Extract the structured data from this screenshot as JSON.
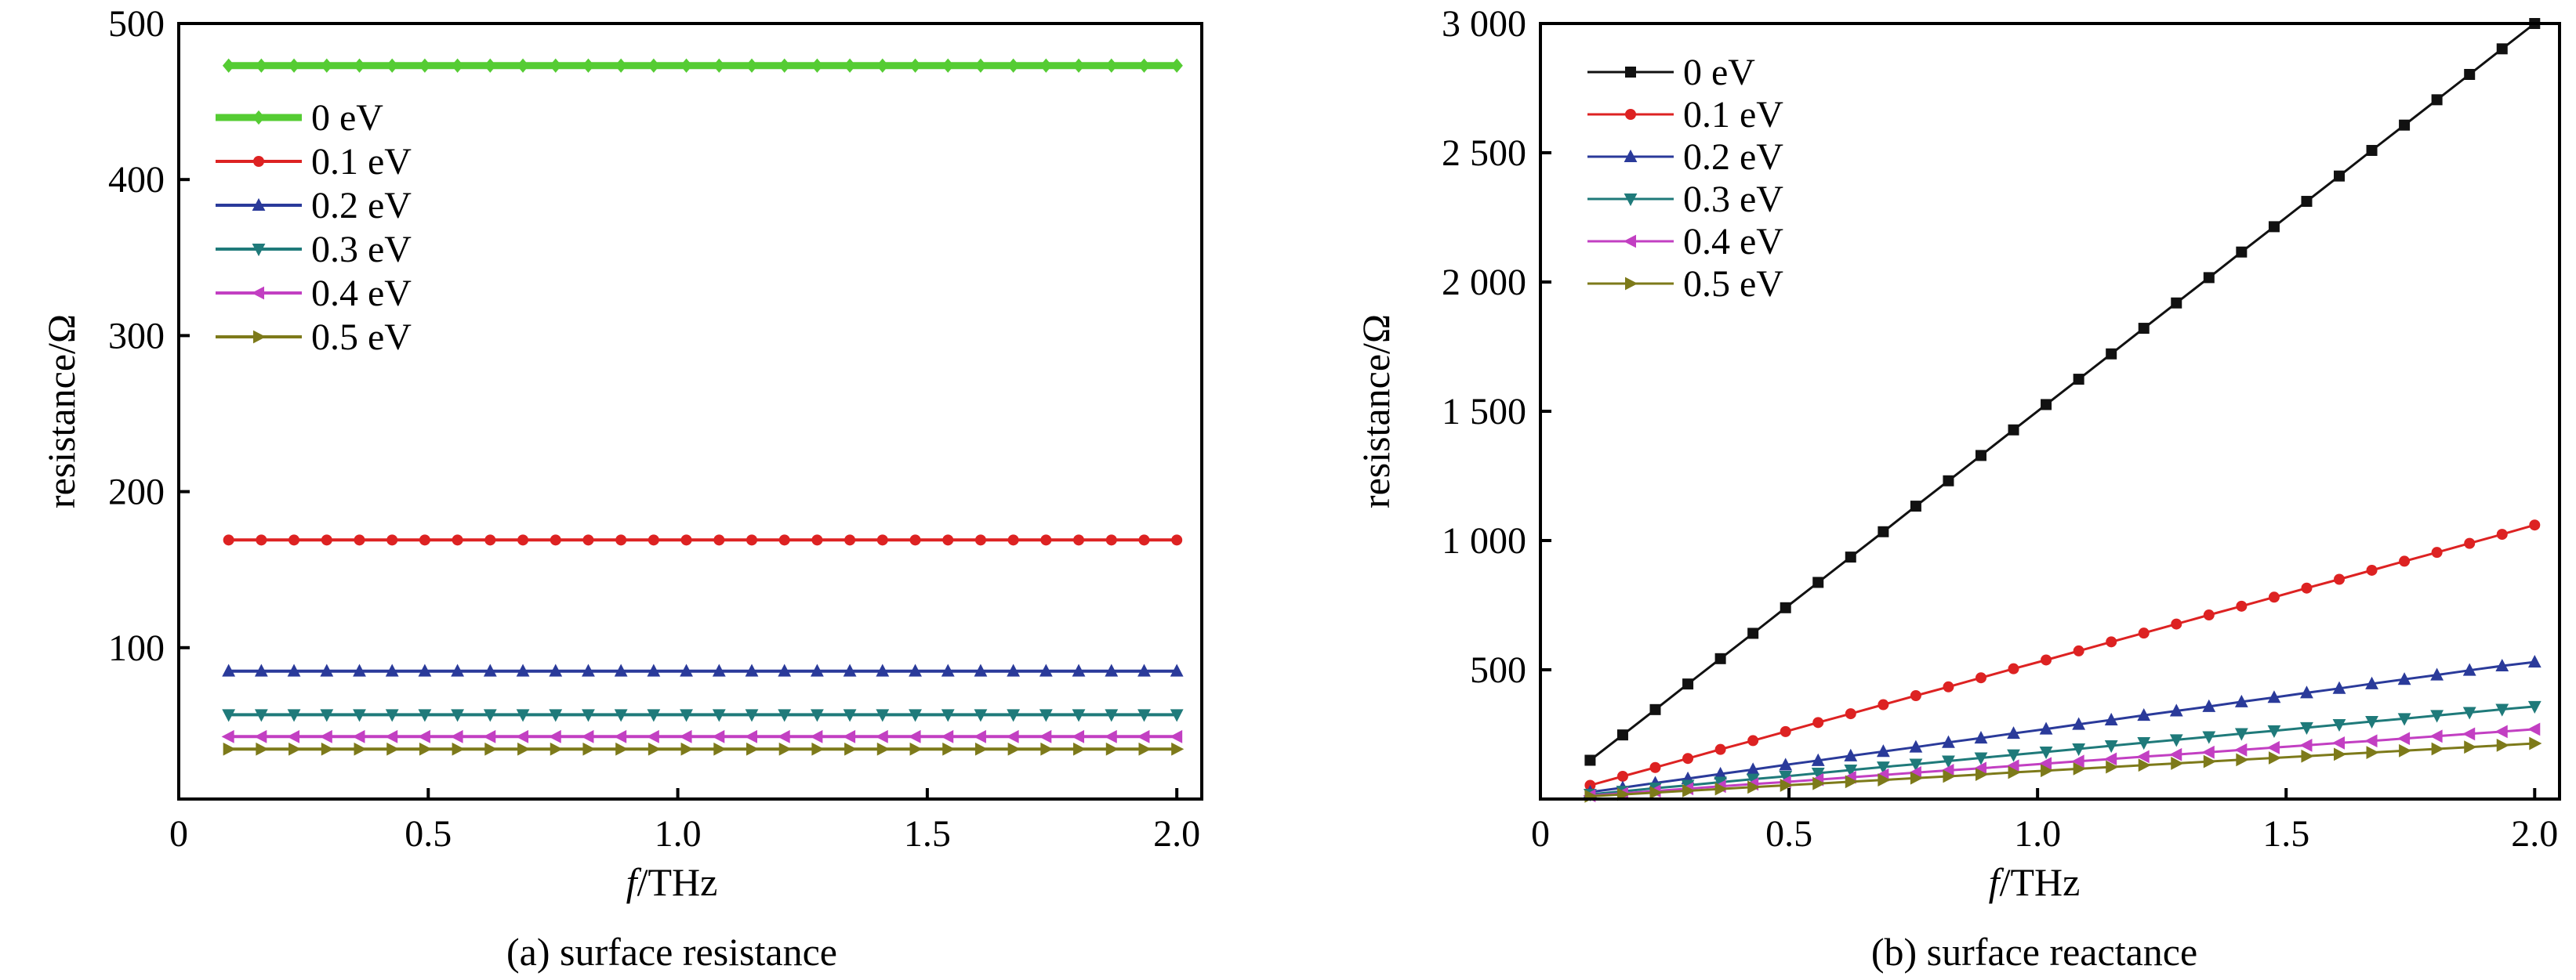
{
  "chart_data": [
    {
      "type": "line",
      "caption": "(a) surface resistance",
      "xlabel_italic": "f",
      "xlabel_rest": "/THz",
      "ylabel": "resistance/Ω",
      "xlim": [
        0,
        2.05
      ],
      "ylim": [
        3,
        500
      ],
      "xticks": [
        0,
        0.5,
        1.0,
        1.5,
        2.0
      ],
      "xtick_labels": [
        "0",
        "0.5",
        "1.0",
        "1.5",
        "2.0"
      ],
      "yticks": [
        100,
        200,
        300,
        400,
        500
      ],
      "ytick_labels": [
        "100",
        "200",
        "300",
        "400",
        "500"
      ],
      "legend_position": "upper-left",
      "x": [
        0.1,
        0.1655,
        0.231,
        0.2966,
        0.3621,
        0.4276,
        0.4931,
        0.5586,
        0.6241,
        0.6897,
        0.7552,
        0.8207,
        0.8862,
        0.9517,
        1.0172,
        1.0828,
        1.1483,
        1.2138,
        1.2793,
        1.3448,
        1.4103,
        1.4759,
        1.5414,
        1.6069,
        1.6724,
        1.7379,
        1.8034,
        1.869,
        1.9345,
        2.0
      ],
      "series": [
        {
          "name": "0 eV",
          "color": "#55cc33",
          "marker": "diamond",
          "values": [
            473,
            473,
            473,
            473,
            473,
            473,
            473,
            473,
            473,
            473,
            473,
            473,
            473,
            473,
            473,
            473,
            473,
            473,
            473,
            473,
            473,
            473,
            473,
            473,
            473,
            473,
            473,
            473,
            473,
            473
          ]
        },
        {
          "name": "0.1 eV",
          "color": "#dd2222",
          "marker": "circle",
          "values": [
            169,
            169,
            169,
            169,
            169,
            169,
            169,
            169,
            169,
            169,
            169,
            169,
            169,
            169,
            169,
            169,
            169,
            169,
            169,
            169,
            169,
            169,
            169,
            169,
            169,
            169,
            169,
            169,
            169,
            169
          ]
        },
        {
          "name": "0.2 eV",
          "color": "#2a3a9a",
          "marker": "triangle-up",
          "values": [
            85,
            85,
            85,
            85,
            85,
            85,
            85,
            85,
            85,
            85,
            85,
            85,
            85,
            85,
            85,
            85,
            85,
            85,
            85,
            85,
            85,
            85,
            85,
            85,
            85,
            85,
            85,
            85,
            85,
            85
          ]
        },
        {
          "name": "0.3 eV",
          "color": "#1f7a7a",
          "marker": "triangle-down",
          "values": [
            57,
            57,
            57,
            57,
            57,
            57,
            57,
            57,
            57,
            57,
            57,
            57,
            57,
            57,
            57,
            57,
            57,
            57,
            57,
            57,
            57,
            57,
            57,
            57,
            57,
            57,
            57,
            57,
            57,
            57
          ]
        },
        {
          "name": "0.4 eV",
          "color": "#c23fc2",
          "marker": "triangle-left",
          "values": [
            43,
            43,
            43,
            43,
            43,
            43,
            43,
            43,
            43,
            43,
            43,
            43,
            43,
            43,
            43,
            43,
            43,
            43,
            43,
            43,
            43,
            43,
            43,
            43,
            43,
            43,
            43,
            43,
            43,
            43
          ]
        },
        {
          "name": "0.5 eV",
          "color": "#7d7a1a",
          "marker": "triangle-right",
          "values": [
            35,
            35,
            35,
            35,
            35,
            35,
            35,
            35,
            35,
            35,
            35,
            35,
            35,
            35,
            35,
            35,
            35,
            35,
            35,
            35,
            35,
            35,
            35,
            35,
            35,
            35,
            35,
            35,
            35,
            35
          ]
        }
      ]
    },
    {
      "type": "line",
      "caption": "(b) surface reactance",
      "xlabel_italic": "f",
      "xlabel_rest": "/THz",
      "ylabel": "resistance/Ω",
      "xlim": [
        0,
        2.05
      ],
      "ylim": [
        0,
        3000
      ],
      "xticks": [
        0,
        0.5,
        1.0,
        1.5,
        2.0
      ],
      "xtick_labels": [
        "0",
        "0.5",
        "1.0",
        "1.5",
        "2.0"
      ],
      "yticks": [
        500,
        1000,
        1500,
        2000,
        2500,
        3000
      ],
      "ytick_labels": [
        "500",
        "1 000",
        "1 500",
        "2 000",
        "2 500",
        "3 000"
      ],
      "legend_position": "upper-left",
      "x": [
        0.1,
        0.1655,
        0.231,
        0.2966,
        0.3621,
        0.4276,
        0.4931,
        0.5586,
        0.6241,
        0.6897,
        0.7552,
        0.8207,
        0.8862,
        0.9517,
        1.0172,
        1.0828,
        1.1483,
        1.2138,
        1.2793,
        1.3448,
        1.4103,
        1.4759,
        1.5414,
        1.6069,
        1.6724,
        1.7379,
        1.8034,
        1.869,
        1.9345,
        2.0
      ],
      "series": [
        {
          "name": "0 eV",
          "color": "#111111",
          "marker": "square",
          "values": [
            150,
            248,
            346,
            445,
            543,
            641,
            740,
            838,
            936,
            1034,
            1133,
            1231,
            1329,
            1428,
            1526,
            1624,
            1722,
            1821,
            1919,
            2017,
            2116,
            2214,
            2312,
            2410,
            2509,
            2607,
            2705,
            2803,
            2902,
            3000
          ]
        },
        {
          "name": "0.1 eV",
          "color": "#dd2222",
          "marker": "circle",
          "values": [
            53,
            88,
            122,
            157,
            192,
            226,
            261,
            296,
            330,
            365,
            400,
            434,
            469,
            504,
            538,
            573,
            608,
            642,
            677,
            712,
            746,
            781,
            816,
            850,
            885,
            920,
            954,
            989,
            1024,
            1060
          ]
        },
        {
          "name": "0.2 eV",
          "color": "#2a3a9a",
          "marker": "triangle-up",
          "values": [
            27,
            44,
            62,
            79,
            97,
            114,
            132,
            149,
            167,
            184,
            201,
            219,
            236,
            254,
            271,
            289,
            306,
            324,
            341,
            358,
            376,
            393,
            411,
            428,
            446,
            463,
            480,
            498,
            515,
            530
          ]
        },
        {
          "name": "0.3 eV",
          "color": "#1f7a7a",
          "marker": "triangle-down",
          "values": [
            18,
            30,
            42,
            53,
            65,
            77,
            88,
            100,
            112,
            124,
            135,
            147,
            159,
            171,
            182,
            194,
            206,
            218,
            229,
            241,
            253,
            264,
            276,
            288,
            300,
            311,
            323,
            335,
            347,
            358
          ]
        },
        {
          "name": "0.4 eV",
          "color": "#c23fc2",
          "marker": "triangle-left",
          "values": [
            13,
            22,
            31,
            40,
            49,
            58,
            66,
            75,
            84,
            93,
            102,
            111,
            119,
            128,
            137,
            146,
            155,
            164,
            172,
            181,
            190,
            199,
            208,
            217,
            225,
            234,
            243,
            252,
            261,
            270
          ]
        },
        {
          "name": "0.5 eV",
          "color": "#7d7a1a",
          "marker": "triangle-right",
          "values": [
            11,
            18,
            25,
            32,
            39,
            46,
            53,
            60,
            67,
            74,
            81,
            88,
            95,
            103,
            110,
            117,
            124,
            131,
            138,
            145,
            152,
            159,
            166,
            173,
            180,
            187,
            194,
            201,
            208,
            215
          ]
        }
      ]
    }
  ]
}
